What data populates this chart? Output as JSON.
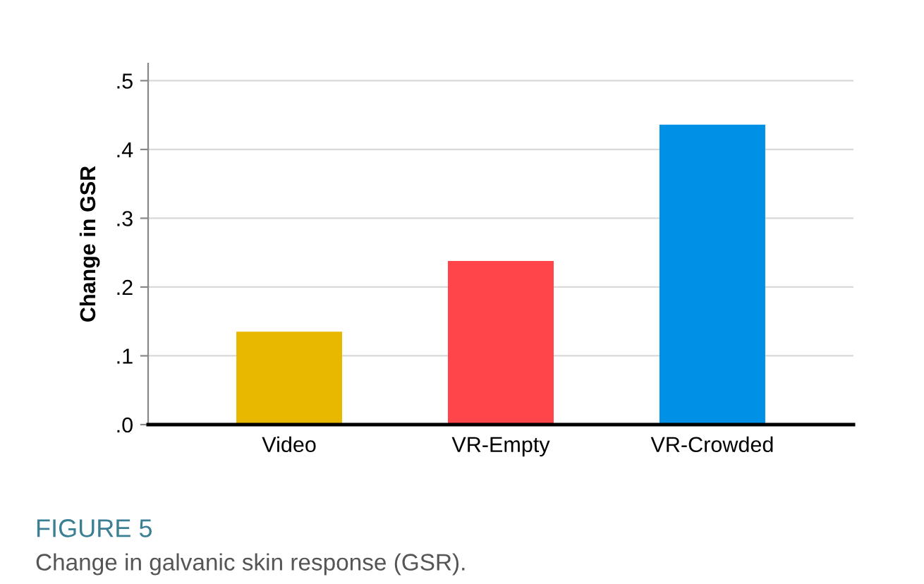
{
  "chart_data": {
    "type": "bar",
    "ylabel": "Change in GSR",
    "categories": [
      "Video",
      "VR-Empty",
      "VR-Crowded"
    ],
    "values": [
      0.135,
      0.238,
      0.436
    ],
    "colors": [
      "#e8b800",
      "#ff444a",
      "#0090e6"
    ],
    "ylim": [
      0,
      0.525
    ],
    "yticks": [
      {
        "value": 0,
        "label": ".0"
      },
      {
        "value": 0.1,
        "label": ".1"
      },
      {
        "value": 0.2,
        "label": ".2"
      },
      {
        "value": 0.3,
        "label": ".3"
      },
      {
        "value": 0.4,
        "label": ".4"
      },
      {
        "value": 0.5,
        "label": ".5"
      }
    ],
    "grid": "y",
    "annotations": [
      "FIGURE 5",
      "Change in galvanic skin response (GSR)."
    ]
  }
}
